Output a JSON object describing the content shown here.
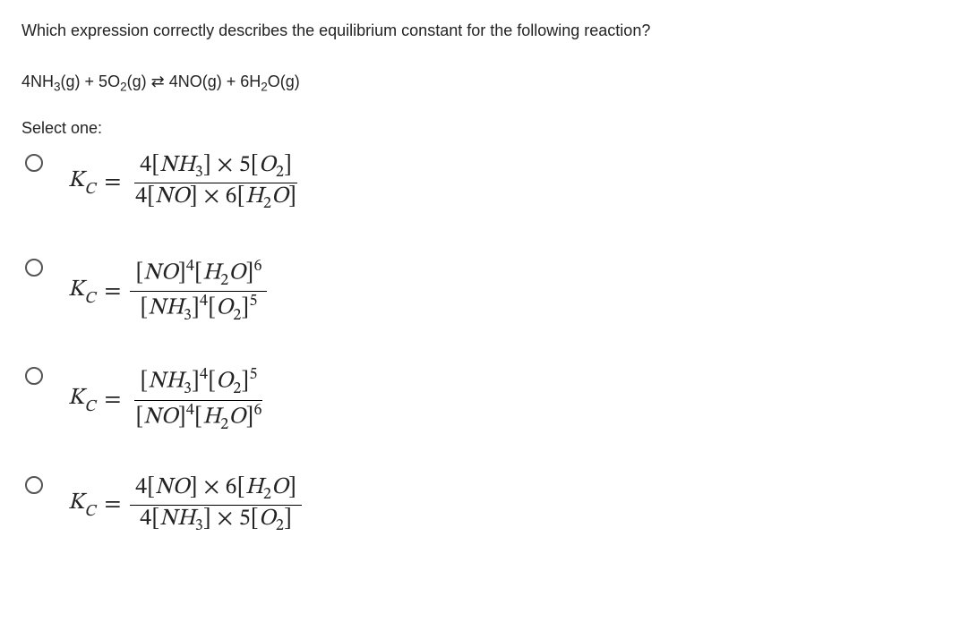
{
  "question": "Which expression correctly describes the equilibrium constant for the following reaction?",
  "reaction": {
    "r1_coef": "4",
    "r1_species": "NH",
    "r1_sub": "3",
    "r1_phase": "(g)",
    "plus1": " + ",
    "r2_coef": "5",
    "r2_species": "O",
    "r2_sub": "2",
    "r2_phase": "(g)",
    "arrow": " ⇄ ",
    "p1_coef": "4",
    "p1_species": "NO",
    "p1_phase": "(g)",
    "plus2": " + ",
    "p2_coef": "6",
    "p2_species": "H",
    "p2_sub": "2",
    "p2_species2": "O",
    "p2_phase": "(g)"
  },
  "select_label": "Select one:",
  "kc_label": "K",
  "kc_sub": "C",
  "equals": "=",
  "options": {
    "a": {
      "num_1": "4[",
      "num_sp1": "N",
      "num_sp1b": "H",
      "num_sub1": "3",
      "num_2": "] × 5[",
      "num_sp2": "O",
      "num_sub2": "2",
      "num_3": "]",
      "den_1": "4[",
      "den_sp1": "N",
      "den_sp1b": "O",
      "den_2": "] × 6[",
      "den_sp2": "H",
      "den_sub2": "2",
      "den_sp2b": "O",
      "den_3": "]"
    },
    "b": {
      "num_1": "[",
      "num_sp1": "N",
      "num_sp1b": "O",
      "num_2": "]",
      "num_pow1": "4",
      "num_3": "[",
      "num_sp2": "H",
      "num_sub2": "2",
      "num_sp2b": "O",
      "num_4": "]",
      "num_pow2": "6",
      "den_1": "[",
      "den_sp1": "N",
      "den_sp1b": "H",
      "den_sub1": "3",
      "den_2": "]",
      "den_pow1": "4",
      "den_3": "[",
      "den_sp2": "O",
      "den_sub2": "2",
      "den_4": "]",
      "den_pow2": "5"
    },
    "c": {
      "num_1": "[",
      "num_sp1": "N",
      "num_sp1b": "H",
      "num_sub1": "3",
      "num_2": "]",
      "num_pow1": "4",
      "num_3": "[",
      "num_sp2": "O",
      "num_sub2": "2",
      "num_4": "]",
      "num_pow2": "5",
      "den_1": "[",
      "den_sp1": "N",
      "den_sp1b": "O",
      "den_2": "]",
      "den_pow1": "4",
      "den_3": "[",
      "den_sp2": "H",
      "den_sub2": "2",
      "den_sp2b": "O",
      "den_4": "]",
      "den_pow2": "6"
    },
    "d": {
      "num_1": "4[",
      "num_sp1": "N",
      "num_sp1b": "O",
      "num_2": "] × 6[",
      "num_sp2": "H",
      "num_sub2": "2",
      "num_sp2b": "O",
      "num_3": "]",
      "den_1": "4[",
      "den_sp1": "N",
      "den_sp1b": "H",
      "den_sub1": "3",
      "den_2": "] × 5[",
      "den_sp2": "O",
      "den_sub2": "2",
      "den_3": "]"
    }
  }
}
